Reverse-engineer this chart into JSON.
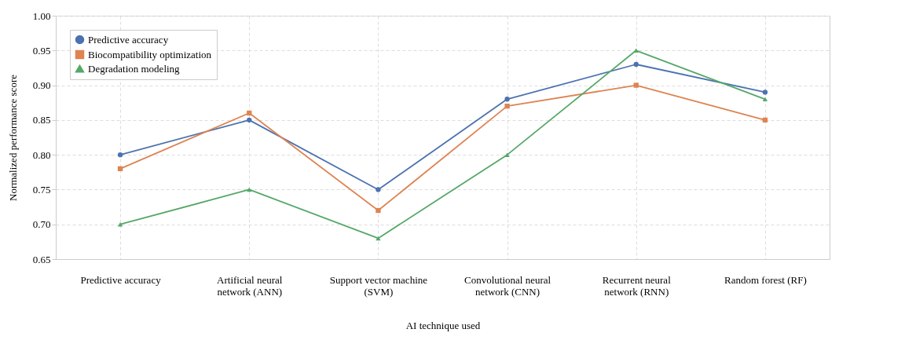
{
  "chart_data": {
    "type": "line",
    "xlabel": "AI technique used",
    "ylabel": "Normalized performance score",
    "categories": [
      "Predictive accuracy",
      "Artificial neural network (ANN)",
      "Support vector machine (SVM)",
      "Convolutional neural network (CNN)",
      "Recurrent neural network (RNN)",
      "Random forest (RF)"
    ],
    "series": [
      {
        "name": "Predictive accuracy",
        "color": "#4c72b0",
        "marker": "circle",
        "values": [
          0.8,
          0.85,
          0.75,
          0.88,
          0.93,
          0.89
        ]
      },
      {
        "name": "Biocompatibility optimization",
        "color": "#dd8452",
        "marker": "square",
        "values": [
          0.78,
          0.86,
          0.72,
          0.87,
          0.9,
          0.85
        ]
      },
      {
        "name": "Degradation modeling",
        "color": "#55a868",
        "marker": "triangle",
        "values": [
          0.7,
          0.75,
          0.68,
          0.8,
          0.95,
          0.88
        ]
      }
    ],
    "ylim": [
      0.65,
      1.0
    ],
    "yticks": [
      0.65,
      {
        "value": 0.7,
        "label": "0.70"
      },
      0.75,
      {
        "value": 0.8,
        "label": "0.80"
      },
      0.85,
      {
        "value": 0.9,
        "label": "0.90"
      },
      0.95,
      {
        "value": 1,
        "label": "1.00"
      }
    ],
    "grid": true,
    "legend": "top left",
    "line_style": "solid"
  }
}
